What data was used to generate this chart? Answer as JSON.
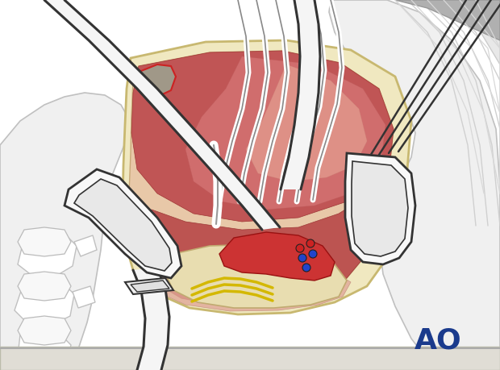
{
  "bg_color": "#ffffff",
  "ao_text": "AO",
  "ao_color": "#1a3a8c",
  "ao_fontsize": 26,
  "fig_width": 6.2,
  "fig_height": 4.59,
  "dpi": 100,
  "outline_color": "#333333",
  "light_gray": "#e0e0e0",
  "cream": "#f0e8c0",
  "cream_border": "#c8b870",
  "muscle_dark": "#b04040",
  "muscle_mid": "#c86060",
  "muscle_light": "#e09080",
  "muscle_pink": "#e8b0a0",
  "bone_color": "#d8d0b8",
  "bone_outline": "#aaaaaa",
  "red_vessel": "#cc2222",
  "blue_screw": "#2244cc",
  "yellow_nerve": "#d4b800",
  "gray_body": "#d8d8d8",
  "gray_body2": "#c8c8c8",
  "retractor_fill": "#f8f8f8",
  "retractor_inner": "#e8e8e8"
}
